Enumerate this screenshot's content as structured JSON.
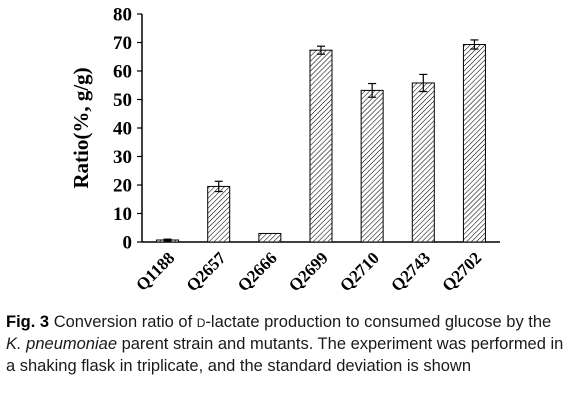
{
  "chart_data": {
    "type": "bar",
    "categories": [
      "Q1188",
      "Q2657",
      "Q2666",
      "Q2699",
      "Q2710",
      "Q2743",
      "Q2702"
    ],
    "values": [
      0.7,
      19.5,
      3.0,
      67.3,
      53.2,
      55.8,
      69.3
    ],
    "errors": [
      0.3,
      1.8,
      0.0,
      1.4,
      2.4,
      3.0,
      1.6
    ],
    "title": "",
    "xlabel": "",
    "ylabel": "Ratio(%, g/g)",
    "ylim": [
      0,
      80
    ],
    "yticks": [
      0,
      10,
      20,
      30,
      40,
      50,
      60,
      70,
      80
    ],
    "grid": false,
    "bar_fill": "hatched",
    "colors": {
      "bar_stroke": "#000000",
      "hatch": "#000000",
      "background": "#ffffff"
    }
  },
  "caption": {
    "fig_label": "Fig. 3",
    "text_before": "Conversion ratio of ",
    "dlactate_prefix": "d",
    "text_dash": "-lactate production to consumed glucose by the ",
    "species": "K. pneumoniae",
    "text_after": " parent strain and mutants. The experiment was performed in a shaking flask in triplicate, and the standard deviation is shown"
  }
}
